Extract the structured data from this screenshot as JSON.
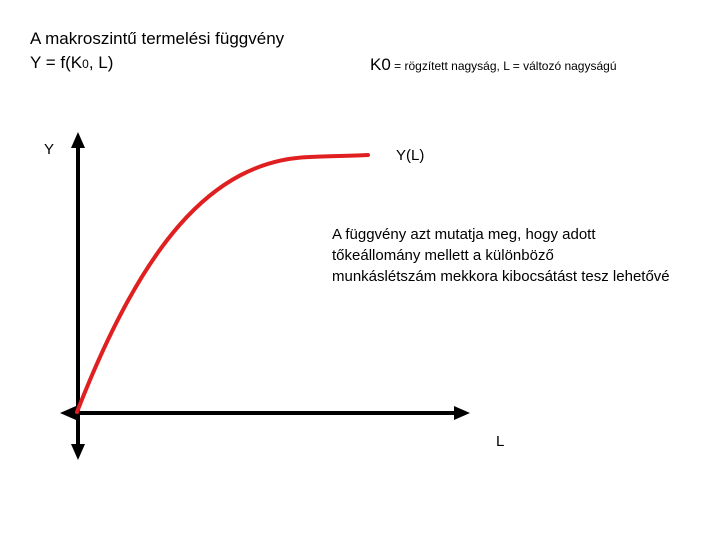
{
  "title": "A makroszintű termelési függvény",
  "formula": {
    "prefix": "Y = f(K",
    "sub": "0",
    "suffix": ", L)"
  },
  "k0_note": {
    "symbol": "K0",
    "text": " = rögzített nagyság, L = változó nagyságú"
  },
  "axes": {
    "y_label": "Y",
    "x_label": "L"
  },
  "curve": {
    "label": "Y(L)",
    "color": "#e02020"
  },
  "explanation_lines": [
    "A függvény azt mutatja meg, hogy adott",
    "tőkeállomány mellett a különböző",
    "munkáslétszám mekkora kibocsátást tesz lehetővé"
  ]
}
